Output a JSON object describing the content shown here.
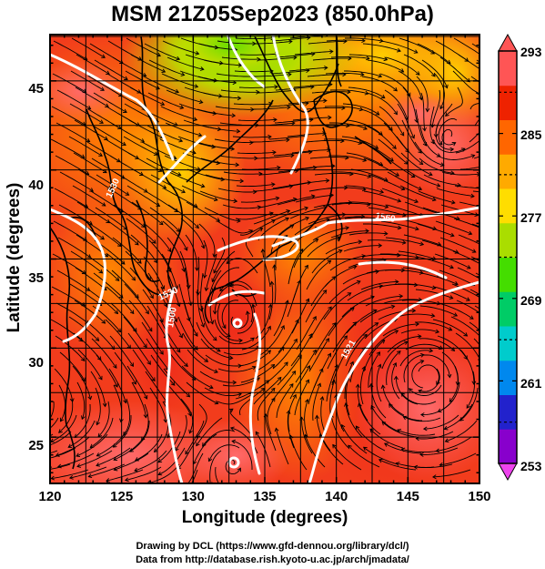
{
  "title": "MSM 21Z05Sep2023 (850.0hPa)",
  "xaxis": {
    "label": "Longitude (degrees)",
    "ticks": [
      "120",
      "125",
      "130",
      "135",
      "140",
      "145",
      "150"
    ],
    "range": [
      120,
      150
    ]
  },
  "yaxis": {
    "label": "Latitude  (degrees)",
    "ticks": [
      "25",
      "30",
      "35",
      "40",
      "45"
    ],
    "range": [
      22.4,
      47.6
    ]
  },
  "colorbar": {
    "ticks": [
      "293",
      "285",
      "277",
      "269",
      "261",
      "253"
    ],
    "range": [
      253,
      293
    ],
    "colors": [
      "#ee44ee",
      "#8800cc",
      "#2222cc",
      "#0088ee",
      "#00cccc",
      "#00cc66",
      "#44dd00",
      "#aadd00",
      "#ffdd00",
      "#ffaa00",
      "#ff6600",
      "#ee2200",
      "#ff5555"
    ]
  },
  "contour_labels": [
    "1530",
    "1560",
    "1530",
    "1500",
    "1521"
  ],
  "credits": {
    "line1": "Drawing by DCL (https://www.gfd-dennou.org/library/dcl/)",
    "line2": "Data from http://database.rish.kyoto-u.ac.jp/arch/jmadata/"
  }
}
